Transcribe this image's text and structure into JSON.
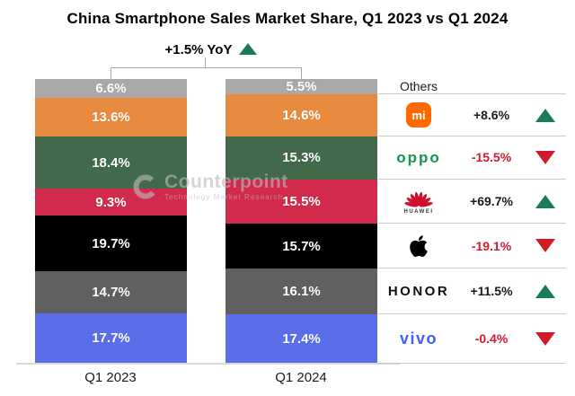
{
  "page": {
    "background": "#FFFFFF"
  },
  "chart_data": {
    "type": "bar",
    "subtype": "stacked-percentage-columns",
    "title": "China Smartphone Sales Market Share, Q1 2023 vs Q1 2024",
    "yoy_annotation": {
      "text": "+1.5% YoY",
      "direction": "up"
    },
    "categories": [
      "Q1 2023",
      "Q1 2024"
    ],
    "unit": "%",
    "ylim": [
      0,
      100
    ],
    "legend_position": "right",
    "series": [
      {
        "name": "Others",
        "color": "#A9A9A9",
        "values": [
          6.6,
          5.5
        ],
        "change": null,
        "direction": null,
        "logo": null
      },
      {
        "name": "Xiaomi",
        "color": "#E98B3F",
        "values": [
          13.6,
          14.6
        ],
        "change": "+8.6%",
        "direction": "up",
        "logo": {
          "kind": "mi-badge",
          "text": "mi",
          "bg": "#FF6900",
          "fg": "#FFFFFF"
        }
      },
      {
        "name": "OPPO",
        "color": "#41694A",
        "values": [
          18.4,
          15.3
        ],
        "change": "-15.5%",
        "direction": "down",
        "logo": {
          "kind": "wordmark",
          "text": "oppo",
          "color": "#12954F",
          "class": "oppo-mark"
        }
      },
      {
        "name": "HUAWEI",
        "color": "#D22A4D",
        "values": [
          9.3,
          15.5
        ],
        "change": "+69.7%",
        "direction": "up",
        "logo": {
          "kind": "huawei-flower",
          "text": "HUAWEI",
          "color": "#CE0E2D"
        }
      },
      {
        "name": "Apple",
        "color": "#000000",
        "values": [
          19.7,
          15.7
        ],
        "change": "-19.1%",
        "direction": "down",
        "logo": {
          "kind": "apple",
          "color": "#000000"
        }
      },
      {
        "name": "HONOR",
        "color": "#606060",
        "values": [
          14.7,
          16.1
        ],
        "change": "+11.5%",
        "direction": "up",
        "logo": {
          "kind": "wordmark",
          "text": "HONOR",
          "color": "#111111",
          "class": "honor-mark"
        }
      },
      {
        "name": "vivo",
        "color": "#5B6EEA",
        "values": [
          17.7,
          17.4
        ],
        "change": "-0.4%",
        "direction": "down",
        "logo": {
          "kind": "wordmark",
          "text": "vivo",
          "color": "#415FFF",
          "class": "vivo-mark"
        }
      }
    ],
    "colors": {
      "up_triangle": "#1A7A5C",
      "down_triangle": "#CE1B28",
      "positive_text": "#1A1A1A",
      "negative_text": "#D11C2E"
    }
  },
  "watermark": {
    "brand": "Counterpoint",
    "tagline": "Technology Market Research"
  }
}
